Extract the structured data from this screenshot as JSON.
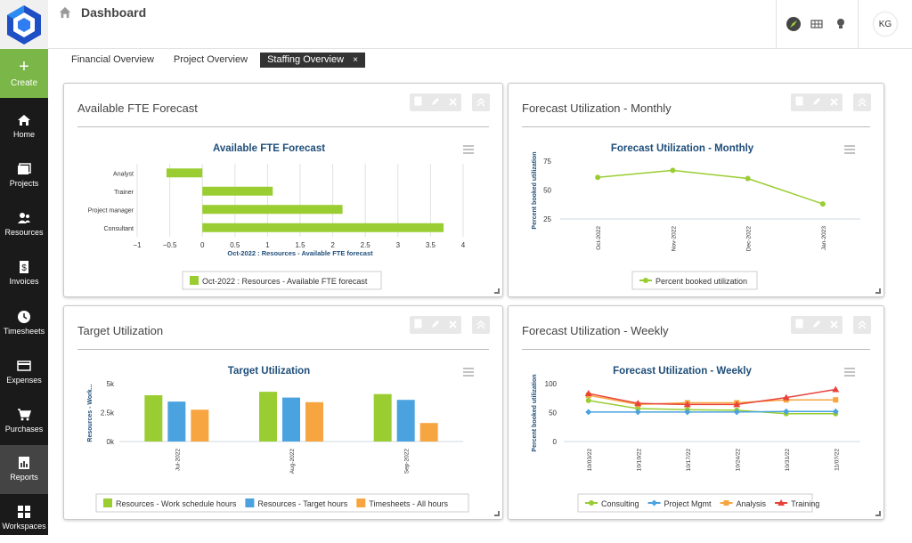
{
  "app": {
    "page_title": "Dashboard",
    "user_initials": "KG",
    "accent_color": "#7ab648"
  },
  "sidebar": {
    "create_label": "Create",
    "items": [
      {
        "label": "Home",
        "icon": "home-icon"
      },
      {
        "label": "Projects",
        "icon": "projects-icon"
      },
      {
        "label": "Resources",
        "icon": "resources-icon"
      },
      {
        "label": "Invoices",
        "icon": "invoices-icon"
      },
      {
        "label": "Timesheets",
        "icon": "clock-icon"
      },
      {
        "label": "Expenses",
        "icon": "expenses-icon"
      },
      {
        "label": "Purchases",
        "icon": "cart-icon"
      },
      {
        "label": "Reports",
        "icon": "reports-icon"
      },
      {
        "label": "Workspaces",
        "icon": "workspaces-icon"
      }
    ]
  },
  "tabs": [
    {
      "label": "Financial Overview"
    },
    {
      "label": "Project Overview"
    },
    {
      "label": "Staffing Overview",
      "close": "×"
    }
  ],
  "panels": {
    "fte": {
      "title": "Available FTE Forecast"
    },
    "monthly": {
      "title": "Forecast Utilization - Monthly"
    },
    "target": {
      "title": "Target Utilization"
    },
    "weekly": {
      "title": "Forecast Utilization - Weekly"
    }
  },
  "chart_data": [
    {
      "id": "fte",
      "type": "bar",
      "orientation": "horizontal",
      "title": "Available FTE Forecast",
      "xlabel": "Oct-2022 : Resources - Available FTE forecast",
      "categories": [
        "Analyst",
        "Trainer",
        "Project manager",
        "Consultant"
      ],
      "series": [
        {
          "name": "Oct-2022 : Resources - Available FTE forecast",
          "values": [
            -0.55,
            1.08,
            2.15,
            3.7
          ],
          "color": "#9acd32"
        }
      ],
      "xticks": [
        "−1",
        "−0.5",
        "0",
        "0.5",
        "1",
        "1.5",
        "2",
        "2.5",
        "3",
        "3.5",
        "4"
      ],
      "xlim": [
        -1,
        4
      ],
      "legend": "bottom",
      "grid": true
    },
    {
      "id": "monthly",
      "type": "line",
      "title": "Forecast Utilization - Monthly",
      "ylabel": "Percent booked utilization",
      "categories": [
        "Oct-2022",
        "Nov-2022",
        "Dec-2022",
        "Jan-2023"
      ],
      "series": [
        {
          "name": "Percent booked utilization",
          "values": [
            61,
            67,
            60,
            38
          ],
          "color": "#9acd32"
        }
      ],
      "yticks": [
        "75",
        "50",
        "25"
      ],
      "ylim": [
        25,
        75
      ],
      "legend": "bottom",
      "grid": false
    },
    {
      "id": "target",
      "type": "bar",
      "title": "Target Utilization",
      "ylabel": "Resources - Work...",
      "categories": [
        "Jul-2022",
        "Aug-2022",
        "Sep-2022"
      ],
      "series": [
        {
          "name": "Resources - Work schedule hours",
          "values": [
            4000,
            4300,
            4100
          ],
          "color": "#9acd32"
        },
        {
          "name": "Resources - Target hours",
          "values": [
            3450,
            3800,
            3600
          ],
          "color": "#4aa3df"
        },
        {
          "name": "Timesheets - All hours",
          "values": [
            2750,
            3400,
            1600
          ],
          "color": "#f7a540"
        }
      ],
      "yticks": [
        "5k",
        "2.5k",
        "0k"
      ],
      "ylim": [
        0,
        5000
      ],
      "legend": "bottom",
      "grid": false
    },
    {
      "id": "weekly",
      "type": "line",
      "title": "Forecast Utilization - Weekly",
      "ylabel": "Percent booked utilization",
      "categories": [
        "10/03/22",
        "10/10/22",
        "10/17/22",
        "10/24/22",
        "10/31/22",
        "11/07/22"
      ],
      "series": [
        {
          "name": "Consulting",
          "values": [
            71,
            57,
            55,
            54,
            48,
            48
          ],
          "color": "#9acd32",
          "marker": "circle"
        },
        {
          "name": "Project Mgmt",
          "values": [
            51,
            51,
            51,
            51,
            52,
            52
          ],
          "color": "#4aa3df",
          "marker": "diamond"
        },
        {
          "name": "Analysis",
          "values": [
            80,
            64,
            67,
            67,
            72,
            72
          ],
          "color": "#f7a540",
          "marker": "square"
        },
        {
          "name": "Training",
          "values": [
            83,
            66,
            64,
            64,
            76,
            90
          ],
          "color": "#e8433a",
          "marker": "triangle"
        }
      ],
      "yticks": [
        "100",
        "75",
        "50",
        "25",
        "0"
      ],
      "ylim": [
        0,
        100
      ],
      "legend": "bottom",
      "grid": false
    }
  ]
}
